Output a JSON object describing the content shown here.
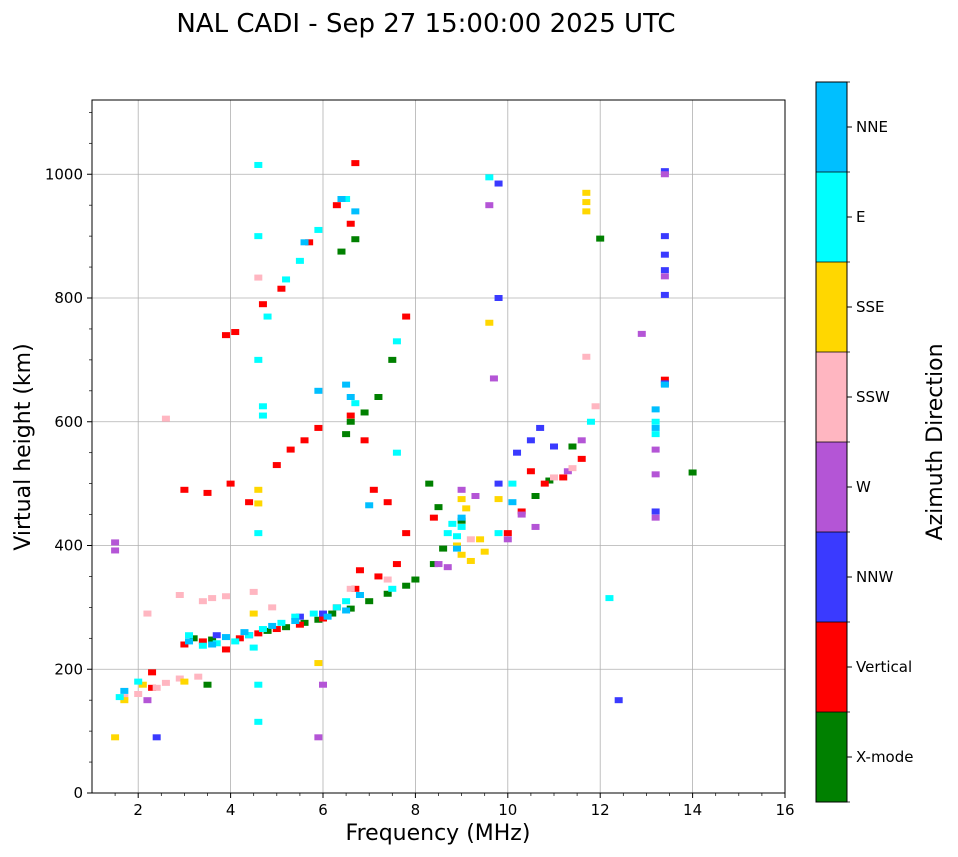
{
  "chart_data": {
    "type": "scatter",
    "title": "NAL CADI - Sep 27 15:00:00 2025 UTC",
    "xlabel": "Frequency (MHz)",
    "ylabel": "Virtual height (km)",
    "xlim": [
      1,
      16
    ],
    "ylim": [
      0,
      1120
    ],
    "xticks": [
      2,
      4,
      6,
      8,
      10,
      12,
      14,
      16
    ],
    "yticks": [
      0,
      200,
      400,
      600,
      800,
      1000
    ],
    "grid": true,
    "colorbar": {
      "label": "Azimuth Direction",
      "categories": [
        {
          "name": "X-mode",
          "color": "#008000"
        },
        {
          "name": "Vertical",
          "color": "#ff0000"
        },
        {
          "name": "NNW",
          "color": "#3a3aff"
        },
        {
          "name": "W",
          "color": "#b455d6"
        },
        {
          "name": "SSW",
          "color": "#ffb6c1"
        },
        {
          "name": "SSE",
          "color": "#ffd700"
        },
        {
          "name": "E",
          "color": "#00ffff"
        },
        {
          "name": "NNE",
          "color": "#00bfff"
        }
      ]
    },
    "series": [
      {
        "name": "X-mode",
        "points": [
          [
            3.2,
            250
          ],
          [
            3.6,
            248
          ],
          [
            4.8,
            262
          ],
          [
            5.2,
            268
          ],
          [
            5.6,
            275
          ],
          [
            5.9,
            280
          ],
          [
            6.2,
            290
          ],
          [
            6.6,
            298
          ],
          [
            7.0,
            310
          ],
          [
            7.4,
            322
          ],
          [
            7.8,
            335
          ],
          [
            8.0,
            345
          ],
          [
            8.4,
            370
          ],
          [
            3.5,
            175
          ],
          [
            10.6,
            480
          ],
          [
            10.9,
            505
          ],
          [
            11.4,
            560
          ],
          [
            12.0,
            896
          ],
          [
            14.0,
            518
          ],
          [
            6.5,
            580
          ],
          [
            6.6,
            600
          ],
          [
            6.9,
            615
          ],
          [
            7.2,
            640
          ],
          [
            7.5,
            700
          ],
          [
            6.4,
            875
          ],
          [
            6.7,
            895
          ],
          [
            8.5,
            462
          ],
          [
            8.6,
            395
          ],
          [
            8.3,
            500
          ],
          [
            9.0,
            440
          ]
        ]
      },
      {
        "name": "Vertical",
        "points": [
          [
            2.3,
            195
          ],
          [
            2.3,
            170
          ],
          [
            3.0,
            240
          ],
          [
            3.4,
            245
          ],
          [
            3.9,
            232
          ],
          [
            4.2,
            250
          ],
          [
            4.6,
            258
          ],
          [
            5.0,
            265
          ],
          [
            5.5,
            272
          ],
          [
            6.0,
            282
          ],
          [
            6.3,
            300
          ],
          [
            6.7,
            330
          ],
          [
            6.8,
            360
          ],
          [
            7.2,
            350
          ],
          [
            7.6,
            370
          ],
          [
            3.0,
            490
          ],
          [
            3.5,
            485
          ],
          [
            4.0,
            500
          ],
          [
            4.4,
            470
          ],
          [
            5.0,
            530
          ],
          [
            5.3,
            555
          ],
          [
            5.6,
            570
          ],
          [
            5.9,
            590
          ],
          [
            6.6,
            610
          ],
          [
            6.9,
            570
          ],
          [
            7.1,
            490
          ],
          [
            7.4,
            470
          ],
          [
            7.8,
            420
          ],
          [
            3.9,
            740
          ],
          [
            4.1,
            745
          ],
          [
            4.7,
            790
          ],
          [
            5.1,
            815
          ],
          [
            5.7,
            890
          ],
          [
            6.3,
            950
          ],
          [
            6.7,
            1018
          ],
          [
            6.6,
            920
          ],
          [
            7.8,
            770
          ],
          [
            10.0,
            420
          ],
          [
            10.3,
            455
          ],
          [
            10.5,
            520
          ],
          [
            10.8,
            500
          ],
          [
            11.2,
            510
          ],
          [
            11.6,
            540
          ],
          [
            13.4,
            668
          ],
          [
            8.4,
            445
          ]
        ]
      },
      {
        "name": "NNW",
        "points": [
          [
            13.4,
            1005
          ],
          [
            13.4,
            900
          ],
          [
            13.4,
            870
          ],
          [
            13.4,
            845
          ],
          [
            13.4,
            805
          ],
          [
            13.4,
            662
          ],
          [
            13.2,
            455
          ],
          [
            12.4,
            150
          ],
          [
            10.2,
            550
          ],
          [
            10.5,
            570
          ],
          [
            10.7,
            590
          ],
          [
            11.0,
            560
          ],
          [
            9.8,
            500
          ],
          [
            9.8,
            800
          ],
          [
            3.7,
            255
          ],
          [
            4.4,
            255
          ],
          [
            5.5,
            285
          ],
          [
            6.0,
            290
          ],
          [
            2.4,
            90
          ],
          [
            9.8,
            985
          ]
        ]
      },
      {
        "name": "W",
        "points": [
          [
            1.5,
            405
          ],
          [
            1.5,
            392
          ],
          [
            8.5,
            370
          ],
          [
            8.7,
            365
          ],
          [
            9.0,
            490
          ],
          [
            9.3,
            480
          ],
          [
            10.0,
            410
          ],
          [
            10.3,
            450
          ],
          [
            10.6,
            430
          ],
          [
            11.3,
            520
          ],
          [
            11.6,
            570
          ],
          [
            13.2,
            555
          ],
          [
            13.2,
            515
          ],
          [
            13.2,
            445
          ],
          [
            12.9,
            742
          ],
          [
            9.7,
            670
          ],
          [
            9.6,
            950
          ],
          [
            5.9,
            90
          ],
          [
            6.0,
            175
          ],
          [
            2.2,
            150
          ],
          [
            13.4,
            1000
          ],
          [
            13.4,
            835
          ]
        ]
      },
      {
        "name": "SSW",
        "points": [
          [
            2.4,
            170
          ],
          [
            2.6,
            178
          ],
          [
            1.7,
            155
          ],
          [
            2.0,
            160
          ],
          [
            2.9,
            185
          ],
          [
            3.3,
            188
          ],
          [
            3.4,
            310
          ],
          [
            3.6,
            315
          ],
          [
            3.9,
            318
          ],
          [
            4.5,
            325
          ],
          [
            4.9,
            300
          ],
          [
            2.9,
            320
          ],
          [
            9.2,
            410
          ],
          [
            11.0,
            510
          ],
          [
            11.4,
            525
          ],
          [
            11.9,
            625
          ],
          [
            2.6,
            605
          ],
          [
            2.2,
            290
          ],
          [
            6.6,
            330
          ],
          [
            7.4,
            345
          ],
          [
            4.6,
            833
          ],
          [
            11.7,
            705
          ]
        ]
      },
      {
        "name": "SSE",
        "points": [
          [
            1.7,
            150
          ],
          [
            1.5,
            90
          ],
          [
            2.1,
            175
          ],
          [
            3.0,
            180
          ],
          [
            4.6,
            490
          ],
          [
            4.6,
            468
          ],
          [
            8.9,
            400
          ],
          [
            9.0,
            385
          ],
          [
            9.2,
            375
          ],
          [
            9.4,
            410
          ],
          [
            9.5,
            390
          ],
          [
            9.0,
            475
          ],
          [
            9.1,
            460
          ],
          [
            9.6,
            760
          ],
          [
            11.7,
            970
          ],
          [
            11.7,
            955
          ],
          [
            11.7,
            940
          ],
          [
            9.8,
            475
          ],
          [
            4.5,
            290
          ],
          [
            5.9,
            210
          ]
        ]
      },
      {
        "name": "E",
        "points": [
          [
            1.6,
            155
          ],
          [
            2.0,
            180
          ],
          [
            3.1,
            255
          ],
          [
            3.4,
            238
          ],
          [
            3.7,
            242
          ],
          [
            4.1,
            245
          ],
          [
            4.4,
            255
          ],
          [
            4.7,
            265
          ],
          [
            5.1,
            275
          ],
          [
            5.4,
            285
          ],
          [
            5.8,
            290
          ],
          [
            6.3,
            300
          ],
          [
            6.5,
            310
          ],
          [
            7.5,
            330
          ],
          [
            8.8,
            435
          ],
          [
            9.0,
            430
          ],
          [
            8.7,
            420
          ],
          [
            8.9,
            415
          ],
          [
            4.7,
            610
          ],
          [
            4.7,
            625
          ],
          [
            4.6,
            700
          ],
          [
            4.8,
            770
          ],
          [
            5.2,
            830
          ],
          [
            5.5,
            860
          ],
          [
            5.9,
            910
          ],
          [
            6.5,
            960
          ],
          [
            4.6,
            1015
          ],
          [
            4.6,
            900
          ],
          [
            4.6,
            420
          ],
          [
            4.5,
            235
          ],
          [
            6.7,
            630
          ],
          [
            7.6,
            730
          ],
          [
            7.6,
            550
          ],
          [
            9.6,
            995
          ],
          [
            11.8,
            600
          ],
          [
            12.2,
            315
          ],
          [
            13.2,
            600
          ],
          [
            13.2,
            580
          ],
          [
            4.6,
            175
          ],
          [
            4.6,
            115
          ],
          [
            9.8,
            420
          ],
          [
            10.1,
            500
          ]
        ]
      },
      {
        "name": "NNE",
        "points": [
          [
            1.7,
            165
          ],
          [
            3.1,
            245
          ],
          [
            3.6,
            240
          ],
          [
            3.9,
            252
          ],
          [
            4.3,
            260
          ],
          [
            4.9,
            270
          ],
          [
            5.4,
            278
          ],
          [
            6.1,
            285
          ],
          [
            6.5,
            295
          ],
          [
            6.8,
            320
          ],
          [
            6.5,
            660
          ],
          [
            6.6,
            640
          ],
          [
            6.4,
            960
          ],
          [
            6.7,
            940
          ],
          [
            8.9,
            395
          ],
          [
            9.0,
            445
          ],
          [
            10.1,
            470
          ],
          [
            13.2,
            620
          ],
          [
            13.2,
            590
          ],
          [
            13.4,
            660
          ],
          [
            7.0,
            465
          ],
          [
            5.6,
            890
          ],
          [
            5.9,
            650
          ]
        ]
      }
    ]
  }
}
